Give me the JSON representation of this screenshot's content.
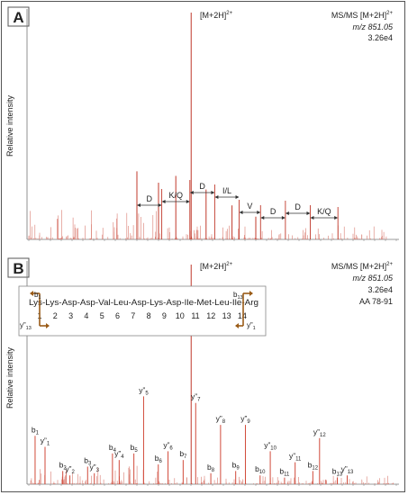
{
  "chart_data": [
    {
      "type": "bar",
      "panel_letter": "A",
      "ylabel": "Relative intensity",
      "precursor_label": "[M+2H]",
      "precursor_charge": "2+",
      "info": [
        "MS/MS [M+2H]",
        "m/z 851.05",
        "3.26e4"
      ],
      "info_charge": "2+",
      "x_range": [
        100,
        1800
      ],
      "major_peaks": [
        {
          "x": 851,
          "y": 100
        },
        {
          "x": 600,
          "y": 30
        },
        {
          "x": 700,
          "y": 25
        },
        {
          "x": 780,
          "y": 28
        },
        {
          "x": 920,
          "y": 22
        },
        {
          "x": 1040,
          "y": 15
        },
        {
          "x": 1150,
          "y": 10
        }
      ],
      "annotations": [
        {
          "text": "D",
          "x1": 600,
          "x2": 715
        },
        {
          "text": "K/Q",
          "x1": 715,
          "x2": 845
        },
        {
          "text": "D",
          "x1": 845,
          "x2": 960
        },
        {
          "text": "I/L",
          "x1": 960,
          "x2": 1073
        },
        {
          "text": "V",
          "x1": 1073,
          "x2": 1172
        },
        {
          "text": "D",
          "x1": 1172,
          "x2": 1287
        },
        {
          "text": "D",
          "x1": 1287,
          "x2": 1402
        },
        {
          "text": "K/Q",
          "x1": 1402,
          "x2": 1530
        }
      ]
    },
    {
      "type": "bar",
      "panel_letter": "B",
      "ylabel": "Relative intensity",
      "precursor_label": "[M+2H]",
      "precursor_charge": "2+",
      "info": [
        "MS/MS [M+2H]",
        "m/z 851.05",
        "3.26e4",
        "AA 78-91"
      ],
      "info_charge": "2+",
      "x_range": [
        100,
        1800
      ],
      "sequence": "Lys-Lys-Asp-Asp-Val-Leu-Asp-Lys-Asp-Ile-Met-Leu-Ile-Arg",
      "positions": [
        "1",
        "2",
        "3",
        "4",
        "5",
        "6",
        "7",
        "8",
        "9",
        "10",
        "11",
        "12",
        "13",
        "14"
      ],
      "b1_label": "b",
      "b1_sub": "1",
      "b13_label": "b",
      "b13_sub": "13",
      "y13_label": "y”",
      "y13_sub": "13",
      "y1_label": "y”",
      "y1_sub": "1",
      "ions": [
        {
          "name": "b",
          "sub": "1",
          "x": 129,
          "y": 22
        },
        {
          "name": "y”",
          "sub": "1",
          "x": 175,
          "y": 17
        },
        {
          "name": "b",
          "sub": "2",
          "x": 257,
          "y": 6
        },
        {
          "name": "y”",
          "sub": "2",
          "x": 290,
          "y": 4
        },
        {
          "name": "b",
          "sub": "3",
          "x": 372,
          "y": 8
        },
        {
          "name": "y”",
          "sub": "3",
          "x": 403,
          "y": 5
        },
        {
          "name": "b",
          "sub": "4",
          "x": 487,
          "y": 14
        },
        {
          "name": "y”",
          "sub": "4",
          "x": 518,
          "y": 11
        },
        {
          "name": "b",
          "sub": "5",
          "x": 586,
          "y": 14
        },
        {
          "name": "y”",
          "sub": "5",
          "x": 631,
          "y": 40
        },
        {
          "name": "b",
          "sub": "6",
          "x": 699,
          "y": 9
        },
        {
          "name": "y”",
          "sub": "6",
          "x": 744,
          "y": 15
        },
        {
          "name": "b",
          "sub": "7",
          "x": 814,
          "y": 11
        },
        {
          "name": "y”",
          "sub": "7",
          "x": 872,
          "y": 37
        },
        {
          "name": "b",
          "sub": "8",
          "x": 942,
          "y": 5
        },
        {
          "name": "y”",
          "sub": "8",
          "x": 987,
          "y": 27
        },
        {
          "name": "b",
          "sub": "9",
          "x": 1057,
          "y": 6
        },
        {
          "name": "y”",
          "sub": "9",
          "x": 1102,
          "y": 27
        },
        {
          "name": "b",
          "sub": "10",
          "x": 1170,
          "y": 4
        },
        {
          "name": "y”",
          "sub": "10",
          "x": 1217,
          "y": 15
        },
        {
          "name": "b",
          "sub": "11",
          "x": 1283,
          "y": 3
        },
        {
          "name": "y”",
          "sub": "11",
          "x": 1332,
          "y": 10
        },
        {
          "name": "b",
          "sub": "12",
          "x": 1414,
          "y": 6
        },
        {
          "name": "y”",
          "sub": "12",
          "x": 1445,
          "y": 21
        },
        {
          "name": "b",
          "sub": "13",
          "x": 1527,
          "y": 3
        },
        {
          "name": "y”",
          "sub": "13",
          "x": 1573,
          "y": 4
        }
      ],
      "precursor_peak": {
        "x": 851,
        "y": 100
      }
    }
  ],
  "colors": {
    "peak": "#c0392b",
    "ion_peak": "#d14a3a",
    "noise": "#d97b70",
    "axis": "#666666",
    "bracket": "#9a5b17",
    "text": "#222222"
  }
}
